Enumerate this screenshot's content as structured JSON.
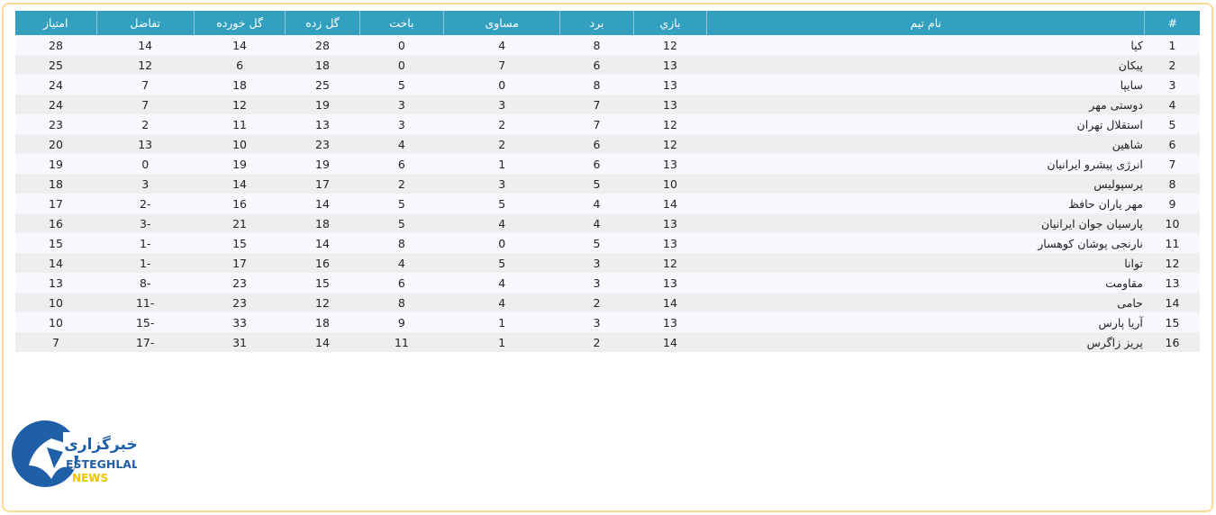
{
  "table": {
    "headers": [
      "#",
      "نام تیم",
      "بازي",
      "برد",
      "مساوی",
      "باخت",
      "گل زده",
      "گل خورده",
      "تفاضل",
      "امتیاز"
    ],
    "rows": [
      [
        "1",
        "کیا",
        "12",
        "8",
        "4",
        "0",
        "28",
        "14",
        "14",
        "28"
      ],
      [
        "2",
        "پیکان",
        "13",
        "6",
        "7",
        "0",
        "18",
        "6",
        "12",
        "25"
      ],
      [
        "3",
        "سایپا",
        "13",
        "8",
        "0",
        "5",
        "25",
        "18",
        "7",
        "24"
      ],
      [
        "4",
        "دوستی مهر",
        "13",
        "7",
        "3",
        "3",
        "19",
        "12",
        "7",
        "24"
      ],
      [
        "5",
        "استقلال تهران",
        "12",
        "7",
        "2",
        "3",
        "13",
        "11",
        "2",
        "23"
      ],
      [
        "6",
        "شاهین",
        "12",
        "6",
        "2",
        "4",
        "23",
        "10",
        "13",
        "20"
      ],
      [
        "7",
        "انرژی پیشرو ایرانیان",
        "13",
        "6",
        "1",
        "6",
        "19",
        "19",
        "0",
        "19"
      ],
      [
        "8",
        "پرسپولیس",
        "10",
        "5",
        "3",
        "2",
        "17",
        "14",
        "3",
        "18"
      ],
      [
        "9",
        "مهر یاران حافظ",
        "14",
        "4",
        "5",
        "5",
        "14",
        "16",
        "-2",
        "17"
      ],
      [
        "10",
        "پارسیان جوان ایرانیان",
        "13",
        "4",
        "4",
        "5",
        "18",
        "21",
        "-3",
        "16"
      ],
      [
        "11",
        "نارنجی پوشان کوهسار",
        "13",
        "5",
        "0",
        "8",
        "14",
        "15",
        "-1",
        "15"
      ],
      [
        "12",
        "توانا",
        "12",
        "3",
        "5",
        "4",
        "16",
        "17",
        "-1",
        "14"
      ],
      [
        "13",
        "مقاومت",
        "13",
        "3",
        "4",
        "6",
        "15",
        "23",
        "-8",
        "13"
      ],
      [
        "14",
        "حامی",
        "14",
        "2",
        "4",
        "8",
        "12",
        "23",
        "-11",
        "10"
      ],
      [
        "15",
        "آریا پارس",
        "13",
        "3",
        "1",
        "9",
        "18",
        "33",
        "-15",
        "10"
      ],
      [
        "16",
        "پریز زاگرس",
        "14",
        "2",
        "1",
        "11",
        "14",
        "31",
        "-17",
        "7"
      ]
    ]
  },
  "logo": {
    "persian": "خبرگزاری",
    "line1": "ESTEGHLAL",
    "line2": "NEWS"
  },
  "colors": {
    "header": "#33a0bf",
    "frame": "#fcd99a",
    "logo_blue": "#1e5fa8",
    "logo_yellow": "#f2c300"
  }
}
